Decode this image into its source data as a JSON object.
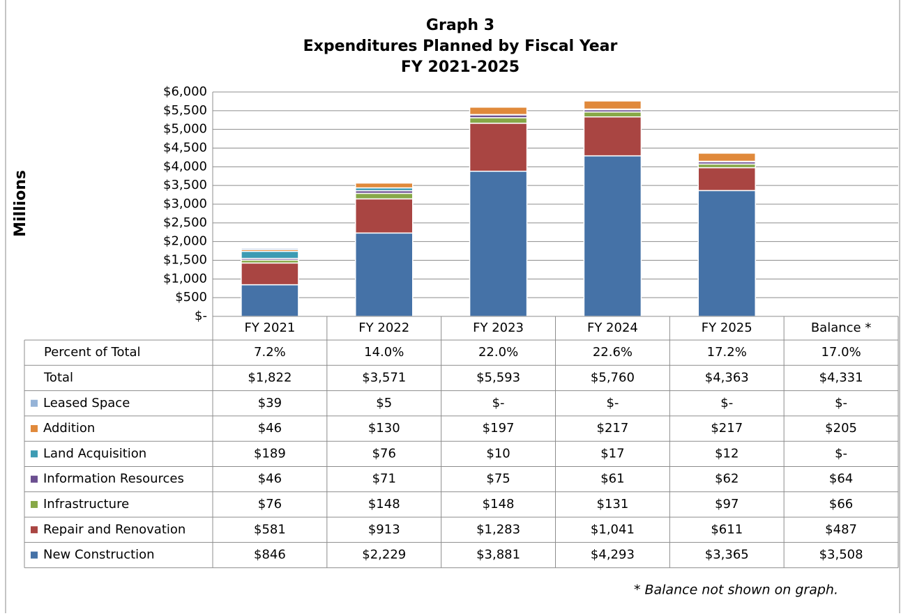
{
  "chart_data": {
    "type": "stacked_bar",
    "title_lines": [
      "Graph 3",
      "Expenditures Planned by Fiscal Year",
      "FY 2021-2025"
    ],
    "y_label": "Millions",
    "categories": [
      "FY 2021",
      "FY 2022",
      "FY 2023",
      "FY 2024",
      "FY 2025",
      "Balance *"
    ],
    "plotted_count": 5,
    "ylim": [
      0,
      6000
    ],
    "yticks": [
      {
        "value": 0,
        "label": "$-"
      },
      {
        "value": 500,
        "label": "$500"
      },
      {
        "value": 1000,
        "label": "$1,000"
      },
      {
        "value": 1500,
        "label": "$1,500"
      },
      {
        "value": 2000,
        "label": "$2,000"
      },
      {
        "value": 2500,
        "label": "$2,500"
      },
      {
        "value": 3000,
        "label": "$3,000"
      },
      {
        "value": 3500,
        "label": "$3,500"
      },
      {
        "value": 4000,
        "label": "$4,000"
      },
      {
        "value": 4500,
        "label": "$4,500"
      },
      {
        "value": 5000,
        "label": "$5,000"
      },
      {
        "value": 5500,
        "label": "$5,500"
      },
      {
        "value": 6000,
        "label": "$6,000"
      }
    ],
    "grid": true,
    "percent_row": {
      "name": "Percent of Total",
      "values": [
        7.2,
        14.0,
        22.0,
        22.6,
        17.2,
        17.0
      ],
      "value_labels": [
        "7.2%",
        "14.0%",
        "22.0%",
        "22.6%",
        "17.2%",
        "17.0%"
      ]
    },
    "total_row": {
      "name": "Total",
      "values": [
        1822,
        3571,
        5593,
        5760,
        4363,
        4331
      ],
      "value_labels": [
        "$1,822",
        "$3,571",
        "$5,593",
        "$5,760",
        "$4,363",
        "$4,331"
      ]
    },
    "series": [
      {
        "name": "Leased Space",
        "color": "#95b3d7",
        "values": [
          39,
          5,
          0,
          0,
          0,
          0
        ],
        "value_labels": [
          "$39",
          "$5",
          "$-",
          "$-",
          "$-",
          "$-"
        ]
      },
      {
        "name": "Addition",
        "color": "#e0893b",
        "values": [
          46,
          130,
          197,
          217,
          217,
          205
        ],
        "value_labels": [
          "$46",
          "$130",
          "$197",
          "$217",
          "$217",
          "$205"
        ]
      },
      {
        "name": "Land Acquisition",
        "color": "#3d9bb3",
        "values": [
          189,
          76,
          10,
          17,
          12,
          0
        ],
        "value_labels": [
          "$189",
          "$76",
          "$10",
          "$17",
          "$12",
          "$-"
        ]
      },
      {
        "name": "Information Resources",
        "color": "#6b4f90",
        "values": [
          46,
          71,
          75,
          61,
          62,
          64
        ],
        "value_labels": [
          "$46",
          "$71",
          "$75",
          "$61",
          "$62",
          "$64"
        ]
      },
      {
        "name": "Infrastructure",
        "color": "#87a847",
        "values": [
          76,
          148,
          148,
          131,
          97,
          66
        ],
        "value_labels": [
          "$76",
          "$148",
          "$148",
          "$131",
          "$97",
          "$66"
        ]
      },
      {
        "name": "Repair and Renovation",
        "color": "#a94542",
        "values": [
          581,
          913,
          1283,
          1041,
          611,
          487
        ],
        "value_labels": [
          "$581",
          "$913",
          "$1,283",
          "$1,041",
          "$611",
          "$487"
        ]
      },
      {
        "name": "New Construction",
        "color": "#4572a7",
        "values": [
          846,
          2229,
          3881,
          4293,
          3365,
          3508
        ],
        "value_labels": [
          "$846",
          "$2,229",
          "$3,881",
          "$4,293",
          "$3,365",
          "$3,508"
        ]
      }
    ],
    "footnote": "* Balance not shown on graph."
  }
}
